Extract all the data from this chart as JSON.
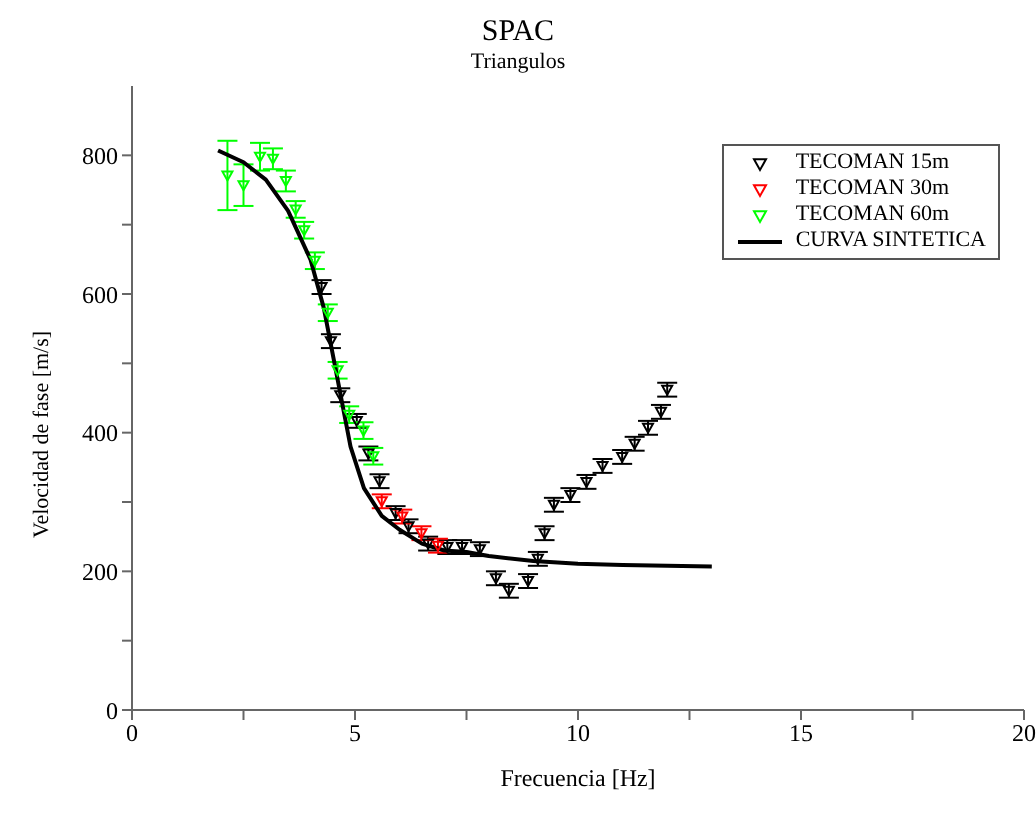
{
  "chart_data": {
    "type": "scatter",
    "title": "SPAC",
    "subtitle": "Triangulos",
    "xlabel": "Frecuencia [Hz]",
    "ylabel": "Velocidad de fase [m/s]",
    "xlim": [
      0,
      20
    ],
    "xticks": [
      0,
      {
        "value": 2.5,
        "label": null
      },
      5,
      {
        "value": 7.5,
        "label": null
      },
      10,
      {
        "value": 12.5,
        "label": null
      },
      15,
      {
        "value": 17.5,
        "label": null
      },
      20
    ],
    "ylim": [
      0,
      900
    ],
    "yticks": [
      0,
      {
        "value": 100,
        "label": null
      },
      200,
      {
        "value": 300,
        "label": null
      },
      400,
      {
        "value": 500,
        "label": null
      },
      600,
      {
        "value": 700,
        "label": null
      },
      800
    ],
    "legend": "top right",
    "marker": "triangle",
    "series": [
      {
        "name": "TECOMAN 15m",
        "color": "#000000",
        "x": [
          4.25,
          4.46,
          4.67,
          5.04,
          5.3,
          5.55,
          5.91,
          6.2,
          6.64,
          7.07,
          7.4,
          7.8,
          8.16,
          8.45,
          8.88,
          9.1,
          9.25,
          9.46,
          9.83,
          10.19,
          10.55,
          10.99,
          11.27,
          11.57,
          11.86,
          12.0
        ],
        "values": [
          610,
          532,
          454,
          417,
          370,
          330,
          284,
          265,
          240,
          235,
          235,
          232,
          190,
          172,
          186,
          218,
          255,
          296,
          310,
          329,
          352,
          365,
          384,
          407,
          430,
          462
        ],
        "errors": [
          10,
          10,
          10,
          10,
          10,
          10,
          10,
          10,
          10,
          10,
          10,
          10,
          10,
          10,
          10,
          10,
          10,
          10,
          10,
          10,
          10,
          10,
          10,
          10,
          10,
          10
        ]
      },
      {
        "name": "TECOMAN 30m",
        "color": "#ff0000",
        "x": [
          5.6,
          6.06,
          6.49,
          6.86
        ],
        "values": [
          301,
          279,
          255,
          237
        ],
        "errors": [
          10,
          10,
          10,
          10
        ]
      },
      {
        "name": "TECOMAN 60m",
        "color": "#00ff00",
        "x": [
          2.14,
          2.5,
          2.87,
          3.16,
          3.45,
          3.67,
          3.86,
          4.1,
          4.39,
          4.61,
          4.87,
          5.19,
          5.41
        ],
        "values": [
          771,
          757,
          798,
          795,
          763,
          722,
          692,
          648,
          573,
          490,
          426,
          403,
          366
        ],
        "errors": [
          50,
          30,
          20,
          15,
          15,
          12,
          12,
          12,
          12,
          12,
          12,
          12,
          12
        ]
      },
      {
        "name": "CURVA SINTETICA",
        "color": "#000000",
        "type": "line",
        "marker": "none",
        "line_style": "solid",
        "x": [
          1.93,
          2.5,
          3,
          3.5,
          4,
          4.3,
          4.6,
          4.9,
          5.2,
          5.6,
          6,
          6.5,
          7,
          7.5,
          8,
          9,
          10,
          11,
          12,
          13
        ],
        "values": [
          807,
          790,
          765,
          720,
          650,
          580,
          480,
          380,
          320,
          280,
          260,
          240,
          230,
          228,
          222,
          215,
          211,
          209,
          208,
          207
        ]
      }
    ]
  }
}
